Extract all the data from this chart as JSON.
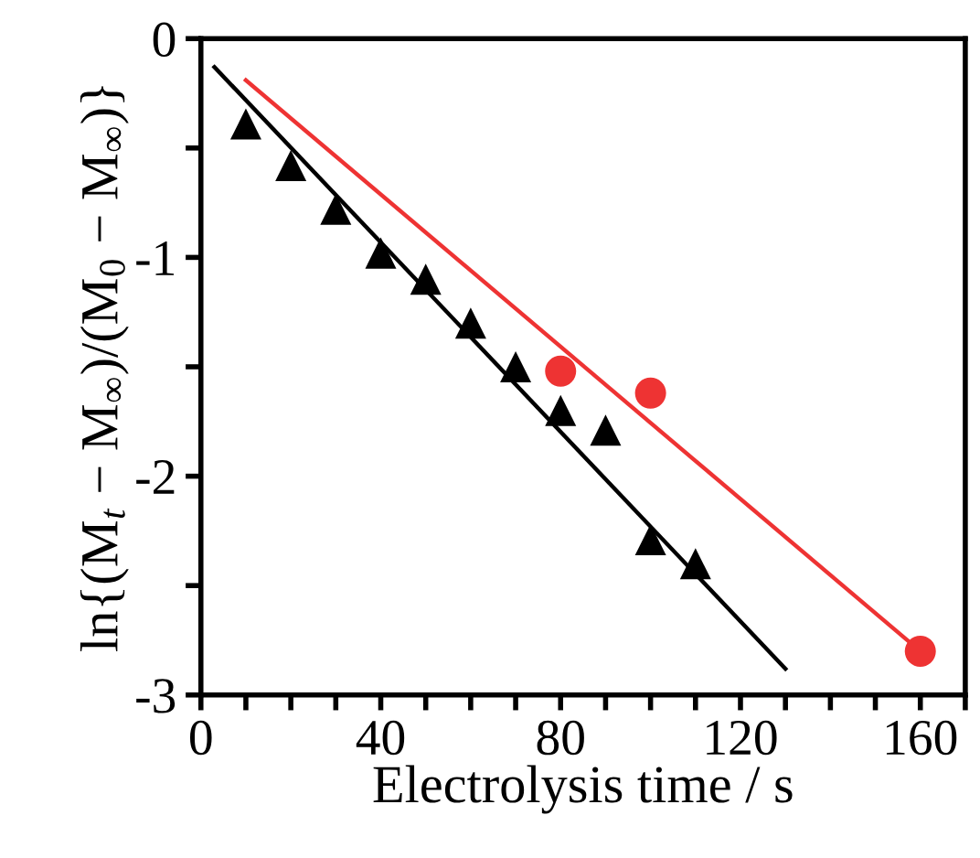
{
  "chart_data": {
    "type": "scatter",
    "xlabel": "Electrolysis time / s",
    "ylabel": "ln{(M$_{t}$ − M$_{∞}$)/(M$_{0}$ − M$_{∞}$)}",
    "xlim": [
      0,
      170
    ],
    "xticks": [
      0,
      {
        "value": 10,
        "label": null
      },
      {
        "value": 20,
        "label": null
      },
      {
        "value": 30,
        "label": null
      },
      40,
      {
        "value": 50,
        "label": null
      },
      {
        "value": 60,
        "label": null
      },
      {
        "value": 70,
        "label": null
      },
      80,
      {
        "value": 90,
        "label": null
      },
      {
        "value": 100,
        "label": null
      },
      {
        "value": 110,
        "label": null
      },
      120,
      {
        "value": 130,
        "label": null
      },
      {
        "value": 140,
        "label": null
      },
      {
        "value": 150,
        "label": null
      },
      160,
      {
        "value": 170,
        "label": null
      }
    ],
    "ylim": [
      -3,
      0
    ],
    "yticks": [
      -3,
      {
        "value": -2.5,
        "label": null
      },
      -2,
      {
        "value": -1.5,
        "label": null
      },
      -1,
      {
        "value": -0.5,
        "label": null
      },
      0
    ],
    "grid": false,
    "series": [
      {
        "marker": "triangle",
        "color": "#000000",
        "x": [
          10,
          20,
          30,
          40,
          50,
          60,
          70,
          80,
          90,
          100,
          110
        ],
        "values": [
          -0.39,
          -0.58,
          -0.78,
          -0.98,
          -1.1,
          -1.3,
          -1.5,
          -1.7,
          -1.79,
          -2.29,
          -2.4
        ]
      },
      {
        "marker": "circle",
        "color": "#ee3333",
        "x": [
          80,
          100,
          160
        ],
        "values": [
          -1.52,
          -1.62,
          -2.8
        ]
      },
      {
        "type": "line",
        "marker": "none",
        "line_style": "solid",
        "color": "#000000",
        "x": [
          3,
          130
        ],
        "values": [
          -0.13,
          -2.88
        ]
      },
      {
        "type": "line",
        "marker": "none",
        "line_style": "solid",
        "color": "#ee3333",
        "x": [
          10,
          160
        ],
        "values": [
          -0.19,
          -2.8
        ]
      }
    ]
  }
}
